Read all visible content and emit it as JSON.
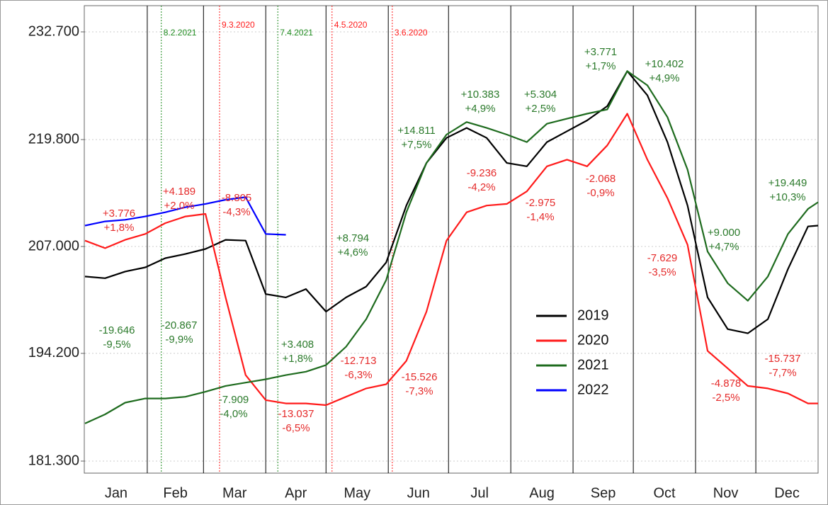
{
  "chart_data": {
    "type": "line",
    "categories": [
      "Jan",
      "Feb",
      "Mar",
      "Apr",
      "May",
      "Jun",
      "Jul",
      "Aug",
      "Sep",
      "Oct",
      "Nov",
      "Dec"
    ],
    "x": [
      0,
      10,
      20,
      30,
      40,
      50,
      60,
      70,
      80,
      90,
      100,
      110,
      120,
      130,
      140,
      150,
      160,
      170,
      180,
      190,
      200,
      210,
      220,
      230,
      240,
      250,
      260,
      270,
      280,
      290,
      300,
      310,
      320,
      330,
      340,
      350,
      360,
      365
    ],
    "xlim": [
      0,
      365
    ],
    "ylim": [
      181300,
      232700
    ],
    "yticks": [
      {
        "value": 181300,
        "label": "181.300"
      },
      {
        "value": 194200,
        "label": "194.200"
      },
      {
        "value": 207000,
        "label": "207.000"
      },
      {
        "value": 219800,
        "label": "219.800"
      },
      {
        "value": 232700,
        "label": "232.700"
      }
    ],
    "grid": true,
    "series": [
      {
        "name": "2019",
        "color": "#000000",
        "values": [
          203400,
          203200,
          204000,
          204500,
          205600,
          206100,
          206700,
          207800,
          207700,
          201300,
          200900,
          201900,
          199200,
          200900,
          202200,
          205100,
          211900,
          217000,
          220000,
          221200,
          220000,
          217000,
          216600,
          219500,
          220800,
          222100,
          223800,
          228000,
          225100,
          219500,
          211900,
          200900,
          197100,
          196600,
          198300,
          204300,
          209400,
          209500
        ]
      },
      {
        "name": "2020",
        "color": "#ff1a1a",
        "values": [
          207700,
          206800,
          207800,
          208500,
          209800,
          210600,
          210900,
          200900,
          191600,
          188600,
          188200,
          188200,
          188000,
          189000,
          190000,
          190500,
          193300,
          199200,
          207700,
          211100,
          211900,
          212100,
          213600,
          216600,
          217400,
          216600,
          219100,
          222900,
          217400,
          212800,
          207200,
          194500,
          192400,
          190300,
          190000,
          189400,
          188200,
          188200
        ]
      },
      {
        "name": "2021",
        "color": "#1e6b1e",
        "values": [
          185800,
          186900,
          188300,
          188800,
          188800,
          189000,
          189600,
          190300,
          190700,
          191100,
          191600,
          192000,
          192800,
          195000,
          198300,
          203000,
          211100,
          217000,
          220400,
          221900,
          221200,
          220400,
          219500,
          221700,
          222300,
          222900,
          223400,
          228000,
          226300,
          222500,
          216200,
          206400,
          202600,
          200500,
          203400,
          208500,
          211500,
          212300
        ]
      },
      {
        "name": "2022",
        "color": "#0000ff",
        "values": [
          209500,
          210000,
          210200,
          210600,
          211100,
          211700,
          212100,
          212600,
          212900,
          208500,
          208400,
          null,
          null,
          null,
          null,
          null,
          null,
          null,
          null,
          null,
          null,
          null,
          null,
          null,
          null,
          null,
          null,
          null,
          null,
          null,
          null,
          null,
          null,
          null,
          null,
          null,
          null,
          null
        ]
      }
    ],
    "markers": [
      {
        "label": "8.2.2021",
        "color": "#1e8a1e"
      },
      {
        "label": "9.3.2020",
        "color": "#ff1a1a"
      },
      {
        "label": "7.4.2021",
        "color": "#1e8a1e"
      },
      {
        "label": "4.5.2020",
        "color": "#ff1a1a"
      },
      {
        "label": "3.6.2020",
        "color": "#ff1a1a"
      }
    ],
    "annotations": [
      {
        "lines": [
          "+3.776",
          "+1,8%"
        ],
        "color": "#e52b2b"
      },
      {
        "lines": [
          "+4.189",
          "+2,0%"
        ],
        "color": "#e52b2b"
      },
      {
        "lines": [
          "-8.805",
          "-4,3%"
        ],
        "color": "#e52b2b"
      },
      {
        "lines": [
          "-19.646",
          "-9,5%"
        ],
        "color": "#2b7a2b"
      },
      {
        "lines": [
          "-20.867",
          "-9,9%"
        ],
        "color": "#2b7a2b"
      },
      {
        "lines": [
          "-7.909",
          "-4,0%"
        ],
        "color": "#2b7a2b"
      },
      {
        "lines": [
          "+3.408",
          "+1,8%"
        ],
        "color": "#2b7a2b"
      },
      {
        "lines": [
          "-13.037",
          "-6,5%"
        ],
        "color": "#e52b2b"
      },
      {
        "lines": [
          "-12.713",
          "-6,3%"
        ],
        "color": "#e52b2b"
      },
      {
        "lines": [
          "+8.794",
          "+4,6%"
        ],
        "color": "#2b7a2b"
      },
      {
        "lines": [
          "-15.526",
          "-7,3%"
        ],
        "color": "#e52b2b"
      },
      {
        "lines": [
          "+14.811",
          "+7,5%"
        ],
        "color": "#2b7a2b"
      },
      {
        "lines": [
          "+10.383",
          "+4,9%"
        ],
        "color": "#2b7a2b"
      },
      {
        "lines": [
          "-9.236",
          "-4,2%"
        ],
        "color": "#e52b2b"
      },
      {
        "lines": [
          "+5.304",
          "+2,5%"
        ],
        "color": "#2b7a2b"
      },
      {
        "lines": [
          "-2.975",
          "-1,4%"
        ],
        "color": "#e52b2b"
      },
      {
        "lines": [
          "+3.771",
          "+1,7%"
        ],
        "color": "#2b7a2b"
      },
      {
        "lines": [
          "-2.068",
          "-0,9%"
        ],
        "color": "#e52b2b"
      },
      {
        "lines": [
          "+10.402",
          "+4,9%"
        ],
        "color": "#2b7a2b"
      },
      {
        "lines": [
          "-7.629",
          "-3,5%"
        ],
        "color": "#e52b2b"
      },
      {
        "lines": [
          "+9.000",
          "+4,7%"
        ],
        "color": "#2b7a2b"
      },
      {
        "lines": [
          "-4.878",
          "-2,5%"
        ],
        "color": "#e52b2b"
      },
      {
        "lines": [
          "+19.449",
          "+10,3%"
        ],
        "color": "#2b7a2b"
      },
      {
        "lines": [
          "-15.737",
          "-7,7%"
        ],
        "color": "#e52b2b"
      }
    ]
  }
}
